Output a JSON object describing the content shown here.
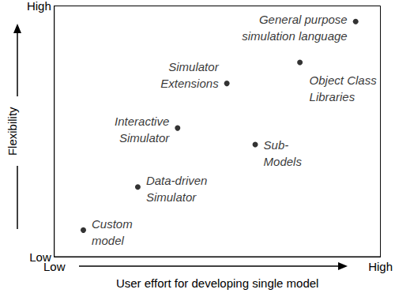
{
  "chart_data": {
    "type": "scatter",
    "xlabel": "User effort for developing single model",
    "ylabel": "Flexibility",
    "x": [
      92.4,
      75.3,
      52.9,
      37.8,
      61.6,
      25.6,
      8.9
    ],
    "values": [
      93.8,
      77.5,
      69.1,
      51.3,
      44.7,
      27.8,
      10.6
    ],
    "labels": [
      "General purpose\nsimulation language",
      "Object Class\nLibraries",
      "Simulator\nExtensions",
      "Interactive\nSimulator",
      "Sub-\nModels",
      "Data-driven\nSimulator",
      "Custom\nmodel"
    ],
    "color": "#000000",
    "marker": "circle",
    "xlim": [
      0,
      100
    ],
    "ylim": [
      0,
      100
    ],
    "xticks": [
      {
        "value": 0,
        "label": "Low"
      },
      {
        "value": 100,
        "label": "High"
      }
    ],
    "yticks": [
      {
        "value": 0,
        "label": "Low"
      },
      {
        "value": 100,
        "label": "High"
      }
    ],
    "grid": false
  }
}
